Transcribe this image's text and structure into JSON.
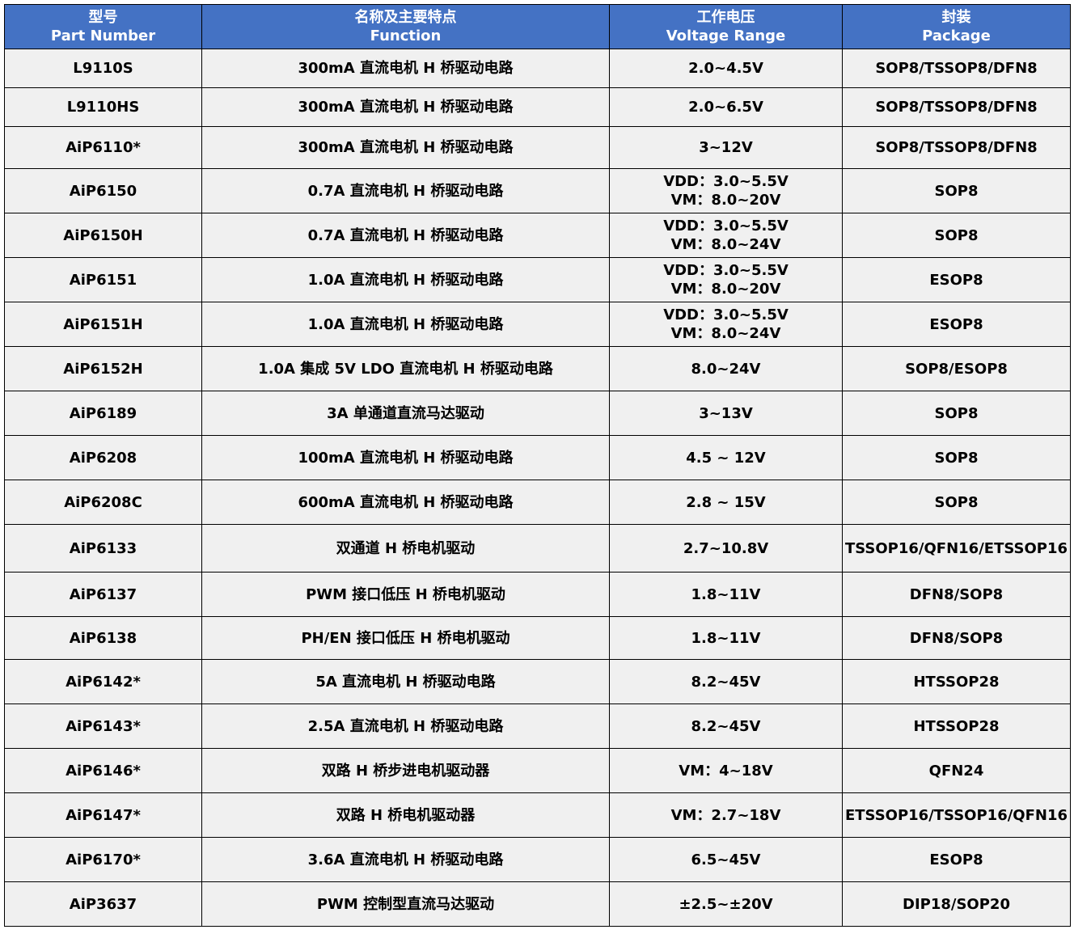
{
  "header": [
    {
      "zh": "型号",
      "en": "Part Number"
    },
    {
      "zh": "名称及主要特点",
      "en": "Function"
    },
    {
      "zh": "工作电压",
      "en": "Voltage Range"
    },
    {
      "zh": "封装",
      "en": "Package"
    }
  ],
  "colors": {
    "header_bg": "#4472c4",
    "header_text": "#ffffff",
    "row_bg": "#f0f0f0",
    "border": "#000000"
  },
  "rows": [
    {
      "part": "L9110S",
      "function": "300mA 直流电机 H 桥驱动电路",
      "voltage": "2.0~4.5V",
      "package": "SOP8/TSSOP8/DFN8"
    },
    {
      "part": "L9110HS",
      "function": "300mA 直流电机 H 桥驱动电路",
      "voltage": "2.0~6.5V",
      "package": "SOP8/TSSOP8/DFN8"
    },
    {
      "part": "AiP6110*",
      "function": "300mA 直流电机 H 桥驱动电路",
      "voltage": "3~12V",
      "package": "SOP8/TSSOP8/DFN8"
    },
    {
      "part": "AiP6150",
      "function": "0.7A 直流电机 H 桥驱动电路",
      "voltage": "VDD：3.0~5.5V\nVM：8.0~20V",
      "package": "SOP8"
    },
    {
      "part": "AiP6150H",
      "function": "0.7A 直流电机 H 桥驱动电路",
      "voltage": "VDD：3.0~5.5V\nVM：8.0~24V",
      "package": "SOP8"
    },
    {
      "part": "AiP6151",
      "function": "1.0A 直流电机 H 桥驱动电路",
      "voltage": "VDD：3.0~5.5V\nVM：8.0~20V",
      "package": "ESOP8"
    },
    {
      "part": "AiP6151H",
      "function": "1.0A 直流电机 H 桥驱动电路",
      "voltage": "VDD：3.0~5.5V\nVM：8.0~24V",
      "package": "ESOP8"
    },
    {
      "part": "AiP6152H",
      "function": "1.0A 集成 5V LDO 直流电机 H 桥驱动电路",
      "voltage": "8.0~24V",
      "package": "SOP8/ESOP8"
    },
    {
      "part": "AiP6189",
      "function": "3A 单通道直流马达驱动",
      "voltage": "3~13V",
      "package": "SOP8"
    },
    {
      "part": "AiP6208",
      "function": "100mA 直流电机 H 桥驱动电路",
      "voltage": "4.5 ~ 12V",
      "package": "SOP8"
    },
    {
      "part": "AiP6208C",
      "function": "600mA 直流电机 H 桥驱动电路",
      "voltage": "2.8 ~ 15V",
      "package": "SOP8"
    },
    {
      "part": "AiP6133",
      "function": "双通道 H 桥电机驱动",
      "voltage": "2.7~10.8V",
      "package": "TSSOP16/QFN16/ETSSOP16"
    },
    {
      "part": "AiP6137",
      "function": "PWM 接口低压 H 桥电机驱动",
      "voltage": "1.8~11V",
      "package": "DFN8/SOP8"
    },
    {
      "part": "AiP6138",
      "function": "PH/EN 接口低压 H 桥电机驱动",
      "voltage": "1.8~11V",
      "package": "DFN8/SOP8"
    },
    {
      "part": "AiP6142*",
      "function": "5A 直流电机 H 桥驱动电路",
      "voltage": "8.2~45V",
      "package": "HTSSOP28"
    },
    {
      "part": "AiP6143*",
      "function": "2.5A 直流电机 H 桥驱动电路",
      "voltage": "8.2~45V",
      "package": "HTSSOP28"
    },
    {
      "part": "AiP6146*",
      "function": "双路 H 桥步进电机驱动器",
      "voltage": "VM：4~18V",
      "package": "QFN24"
    },
    {
      "part": "AiP6147*",
      "function": "双路 H 桥电机驱动器",
      "voltage": "VM：2.7~18V",
      "package": "ETSSOP16/TSSOP16/QFN16"
    },
    {
      "part": "AiP6170*",
      "function": "3.6A 直流电机 H 桥驱动电路",
      "voltage": "6.5~45V",
      "package": "ESOP8"
    },
    {
      "part": "AiP3637",
      "function": "PWM 控制型直流马达驱动",
      "voltage": "±2.5~±20V",
      "package": "DIP18/SOP20"
    }
  ]
}
